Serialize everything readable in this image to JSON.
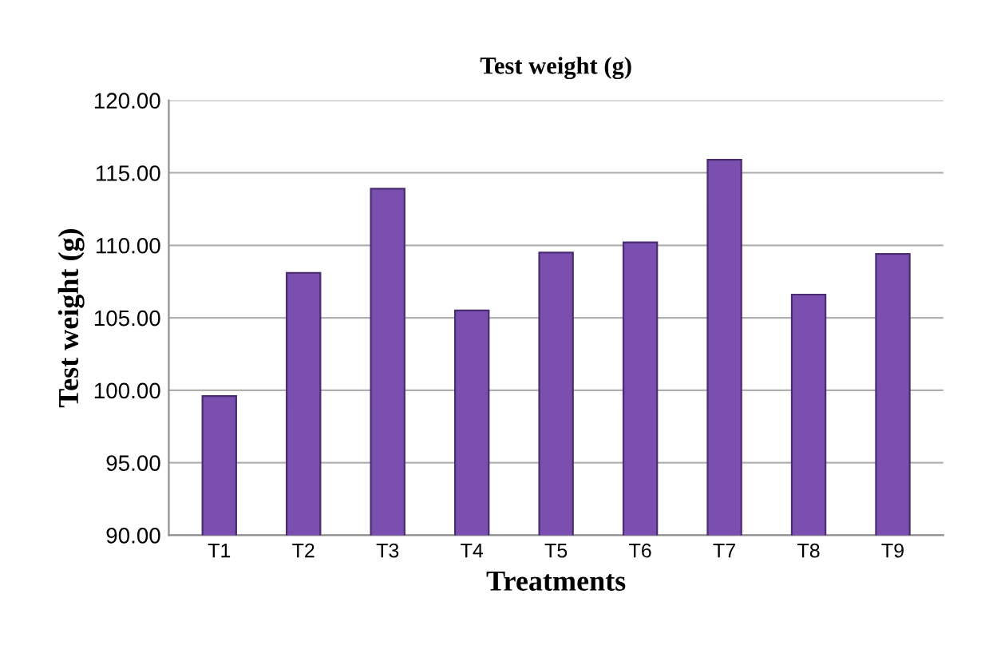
{
  "chart_data": {
    "type": "bar",
    "title": "Test weight (g)",
    "xlabel": "Treatments",
    "ylabel": "Test weight (g)",
    "categories": [
      "T1",
      "T2",
      "T3",
      "T4",
      "T5",
      "T6",
      "T7",
      "T8",
      "T9"
    ],
    "values": [
      99.6,
      108.1,
      113.9,
      105.5,
      109.5,
      110.2,
      115.9,
      106.6,
      109.4
    ],
    "color": "#7b4fb0",
    "ylim": [
      90,
      120
    ],
    "yticks": [
      {
        "value": 90,
        "label": "90.00"
      },
      {
        "value": 95,
        "label": "95.00"
      },
      {
        "value": 100,
        "label": "100.00"
      },
      {
        "value": 105,
        "label": "105.00"
      },
      {
        "value": 110,
        "label": "110.00"
      },
      {
        "value": 115,
        "label": "115.00"
      },
      {
        "value": 120,
        "label": "120.00"
      }
    ],
    "grid": "y"
  }
}
